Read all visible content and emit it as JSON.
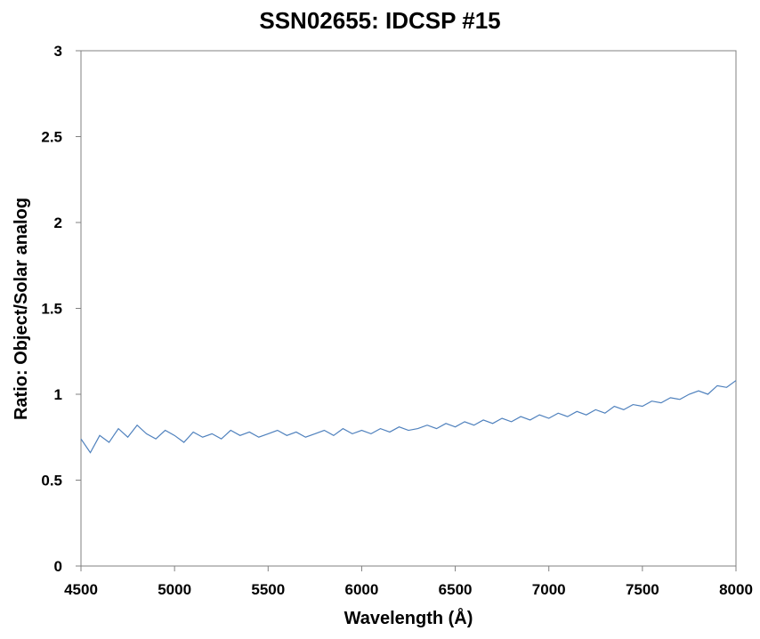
{
  "chart_data": {
    "type": "line",
    "title": "SSN02655: IDCSP #15",
    "xlabel": "Wavelength (Å)",
    "ylabel": "Ratio: Object/Solar analog",
    "xlim": [
      4500,
      8000
    ],
    "ylim": [
      0,
      3
    ],
    "x_ticks": [
      4500,
      5000,
      5500,
      6000,
      6500,
      7000,
      7500,
      8000
    ],
    "y_ticks": [
      0,
      0.5,
      1,
      1.5,
      2,
      2.5,
      3
    ],
    "x_tick_labels": [
      "4500",
      "5000",
      "5500",
      "6000",
      "6500",
      "7000",
      "7500",
      "8000"
    ],
    "y_tick_labels": [
      "0",
      "0.5",
      "1",
      "1.5",
      "2",
      "2.5",
      "3"
    ],
    "grid": false,
    "legend": "none",
    "line_color": "#4F81BD",
    "series": [
      {
        "x": [
          4500,
          4550,
          4600,
          4650,
          4700,
          4750,
          4800,
          4850,
          4900,
          4950,
          5000,
          5050,
          5100,
          5150,
          5200,
          5250,
          5300,
          5350,
          5400,
          5450,
          5500,
          5550,
          5600,
          5650,
          5700,
          5750,
          5800,
          5850,
          5900,
          5950,
          6000,
          6050,
          6100,
          6150,
          6200,
          6250,
          6300,
          6350,
          6400,
          6450,
          6500,
          6550,
          6600,
          6650,
          6700,
          6750,
          6800,
          6850,
          6900,
          6950,
          7000,
          7050,
          7100,
          7150,
          7200,
          7250,
          7300,
          7350,
          7400,
          7450,
          7500,
          7550,
          7600,
          7650,
          7700,
          7750,
          7800,
          7850,
          7900,
          7950,
          8000
        ],
        "y": [
          0.74,
          0.66,
          0.76,
          0.72,
          0.8,
          0.75,
          0.82,
          0.77,
          0.74,
          0.79,
          0.76,
          0.72,
          0.78,
          0.75,
          0.77,
          0.74,
          0.79,
          0.76,
          0.78,
          0.75,
          0.77,
          0.79,
          0.76,
          0.78,
          0.75,
          0.77,
          0.79,
          0.76,
          0.8,
          0.77,
          0.79,
          0.77,
          0.8,
          0.78,
          0.81,
          0.79,
          0.8,
          0.82,
          0.8,
          0.83,
          0.81,
          0.84,
          0.82,
          0.85,
          0.83,
          0.86,
          0.84,
          0.87,
          0.85,
          0.88,
          0.86,
          0.89,
          0.87,
          0.9,
          0.88,
          0.91,
          0.89,
          0.93,
          0.91,
          0.94,
          0.93,
          0.96,
          0.95,
          0.98,
          0.97,
          1.0,
          1.02,
          1.0,
          1.05,
          1.04,
          1.08
        ]
      }
    ]
  }
}
